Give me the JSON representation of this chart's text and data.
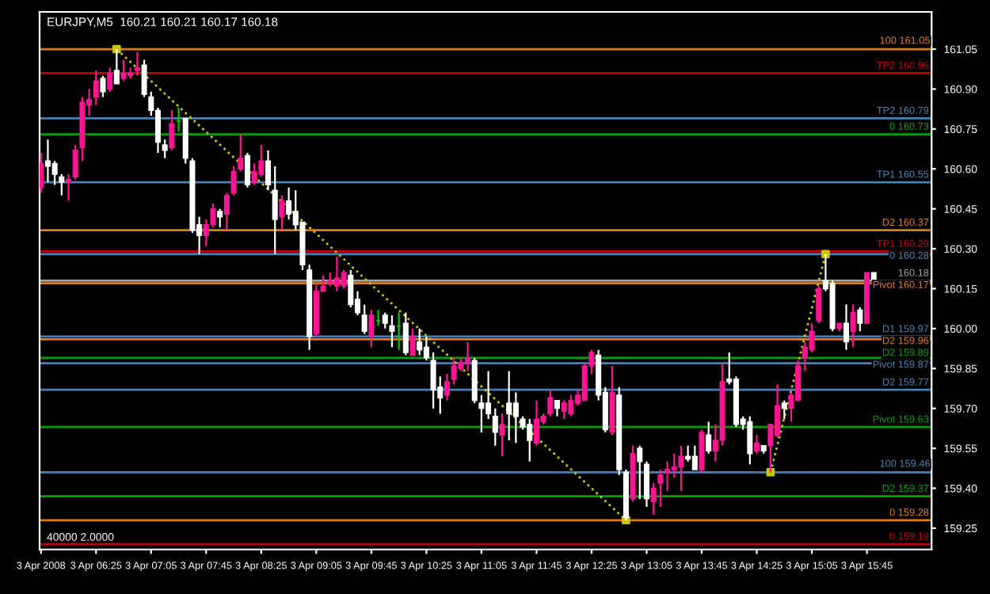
{
  "chart_data": {
    "type": "candlestick",
    "title": "EURJPY,M5  160.21 160.21 160.17 160.18",
    "x": [
      "2008-04-03T05:45",
      "2008-04-03T05:50",
      "2008-04-03T05:55",
      "2008-04-03T06:00",
      "2008-04-03T06:05",
      "2008-04-03T06:10",
      "2008-04-03T06:15",
      "2008-04-03T06:20",
      "2008-04-03T06:25",
      "2008-04-03T06:30",
      "2008-04-03T06:35",
      "2008-04-03T06:40",
      "2008-04-03T06:45",
      "2008-04-03T06:50",
      "2008-04-03T06:55",
      "2008-04-03T07:00",
      "2008-04-03T07:05",
      "2008-04-03T07:10",
      "2008-04-03T07:15",
      "2008-04-03T07:20",
      "2008-04-03T07:25",
      "2008-04-03T07:30",
      "2008-04-03T07:35",
      "2008-04-03T07:40",
      "2008-04-03T07:45",
      "2008-04-03T07:50",
      "2008-04-03T07:55",
      "2008-04-03T08:00",
      "2008-04-03T08:05",
      "2008-04-03T08:10",
      "2008-04-03T08:15",
      "2008-04-03T08:20",
      "2008-04-03T08:25",
      "2008-04-03T08:30",
      "2008-04-03T08:35",
      "2008-04-03T08:40",
      "2008-04-03T08:45",
      "2008-04-03T08:50",
      "2008-04-03T08:55",
      "2008-04-03T09:00",
      "2008-04-03T09:05",
      "2008-04-03T09:10",
      "2008-04-03T09:15",
      "2008-04-03T09:20",
      "2008-04-03T09:25",
      "2008-04-03T09:30",
      "2008-04-03T09:35",
      "2008-04-03T09:40",
      "2008-04-03T09:45",
      "2008-04-03T09:50",
      "2008-04-03T09:55",
      "2008-04-03T10:00",
      "2008-04-03T10:05",
      "2008-04-03T10:10",
      "2008-04-03T10:15",
      "2008-04-03T10:20",
      "2008-04-03T10:25",
      "2008-04-03T10:30",
      "2008-04-03T10:35",
      "2008-04-03T10:40",
      "2008-04-03T10:45",
      "2008-04-03T10:50",
      "2008-04-03T10:55",
      "2008-04-03T11:00",
      "2008-04-03T11:05",
      "2008-04-03T11:10",
      "2008-04-03T11:15",
      "2008-04-03T11:20",
      "2008-04-03T11:25",
      "2008-04-03T11:30",
      "2008-04-03T11:35",
      "2008-04-03T11:40",
      "2008-04-03T11:45",
      "2008-04-03T11:50",
      "2008-04-03T11:55",
      "2008-04-03T12:00",
      "2008-04-03T12:05",
      "2008-04-03T12:10",
      "2008-04-03T12:15",
      "2008-04-03T12:20",
      "2008-04-03T12:25",
      "2008-04-03T12:30",
      "2008-04-03T12:35",
      "2008-04-03T12:40",
      "2008-04-03T12:45",
      "2008-04-03T12:50",
      "2008-04-03T12:55",
      "2008-04-03T13:00",
      "2008-04-03T13:05",
      "2008-04-03T13:10",
      "2008-04-03T13:15",
      "2008-04-03T13:20",
      "2008-04-03T13:25",
      "2008-04-03T13:30",
      "2008-04-03T13:35",
      "2008-04-03T13:40",
      "2008-04-03T13:45",
      "2008-04-03T13:50",
      "2008-04-03T13:55",
      "2008-04-03T14:00",
      "2008-04-03T14:05",
      "2008-04-03T14:10",
      "2008-04-03T14:15",
      "2008-04-03T14:20",
      "2008-04-03T14:25",
      "2008-04-03T14:30",
      "2008-04-03T14:35",
      "2008-04-03T14:40",
      "2008-04-03T14:45",
      "2008-04-03T14:50",
      "2008-04-03T14:55",
      "2008-04-03T15:00",
      "2008-04-03T15:05",
      "2008-04-03T15:10",
      "2008-04-03T15:15",
      "2008-04-03T15:20",
      "2008-04-03T15:25",
      "2008-04-03T15:30",
      "2008-04-03T15:35",
      "2008-04-03T15:40",
      "2008-04-03T15:45",
      "2008-04-03T15:50"
    ],
    "ohlc": [
      [
        160.53,
        160.66,
        160.51,
        160.62
      ],
      [
        160.63,
        160.71,
        160.55,
        160.61
      ],
      [
        160.62,
        160.63,
        160.54,
        160.58
      ],
      [
        160.57,
        160.58,
        160.5,
        160.55
      ],
      [
        160.55,
        160.58,
        160.48,
        160.56
      ],
      [
        160.57,
        160.69,
        160.56,
        160.67
      ],
      [
        160.68,
        160.87,
        160.63,
        160.85
      ],
      [
        160.84,
        160.9,
        160.8,
        160.86
      ],
      [
        160.87,
        160.97,
        160.84,
        160.93
      ],
      [
        160.94,
        160.95,
        160.87,
        160.89
      ],
      [
        160.9,
        160.98,
        160.89,
        160.96
      ],
      [
        160.97,
        161.05,
        160.92,
        160.92
      ],
      [
        160.94,
        161.01,
        160.93,
        160.96
      ],
      [
        160.95,
        160.98,
        160.94,
        160.96
      ],
      [
        160.97,
        161.04,
        160.95,
        160.98
      ],
      [
        160.99,
        161.01,
        160.87,
        160.88
      ],
      [
        160.87,
        160.89,
        160.8,
        160.82
      ],
      [
        160.82,
        160.83,
        160.66,
        160.7
      ],
      [
        160.69,
        160.71,
        160.64,
        160.67
      ],
      [
        160.68,
        160.82,
        160.67,
        160.77
      ],
      [
        160.78,
        160.83,
        160.74,
        160.78
      ],
      [
        160.79,
        160.79,
        160.62,
        160.64
      ],
      [
        160.63,
        160.64,
        160.36,
        160.37
      ],
      [
        160.39,
        160.42,
        160.28,
        160.35
      ],
      [
        160.35,
        160.41,
        160.31,
        160.39
      ],
      [
        160.39,
        160.47,
        160.38,
        160.45
      ],
      [
        160.44,
        160.45,
        160.38,
        160.42
      ],
      [
        160.43,
        160.51,
        160.37,
        160.5
      ],
      [
        160.51,
        160.61,
        160.5,
        160.59
      ],
      [
        160.6,
        160.73,
        160.59,
        160.64
      ],
      [
        160.65,
        160.66,
        160.53,
        160.54
      ],
      [
        160.55,
        160.62,
        160.54,
        160.59
      ],
      [
        160.58,
        160.69,
        160.57,
        160.63
      ],
      [
        160.63,
        160.67,
        160.52,
        160.54
      ],
      [
        160.52,
        160.61,
        160.28,
        160.41
      ],
      [
        160.42,
        160.5,
        160.37,
        160.48
      ],
      [
        160.48,
        160.53,
        160.41,
        160.43
      ],
      [
        160.44,
        160.52,
        160.37,
        160.39
      ],
      [
        160.4,
        160.4,
        160.22,
        160.24
      ],
      [
        160.22,
        160.24,
        159.92,
        159.97
      ],
      [
        159.98,
        160.17,
        159.97,
        160.14
      ],
      [
        160.14,
        160.2,
        160.14,
        160.16
      ],
      [
        160.17,
        160.21,
        160.16,
        160.18
      ],
      [
        160.16,
        160.27,
        160.14,
        160.19
      ],
      [
        160.16,
        160.22,
        160.15,
        160.21
      ],
      [
        160.2,
        160.22,
        160.08,
        160.09
      ],
      [
        160.11,
        160.14,
        160.05,
        160.06
      ],
      [
        160.05,
        160.09,
        159.98,
        159.99
      ],
      [
        159.97,
        160.07,
        159.93,
        160.05
      ],
      [
        160.03,
        160.07,
        160.01,
        160.03
      ],
      [
        160.05,
        160.06,
        160.0,
        160.02
      ],
      [
        160.01,
        160.05,
        159.93,
        159.99
      ],
      [
        160.01,
        160.06,
        159.92,
        160.01
      ],
      [
        160.02,
        160.06,
        159.9,
        159.91
      ],
      [
        159.9,
        160.0,
        159.9,
        159.97
      ],
      [
        159.95,
        160.0,
        159.9,
        159.92
      ],
      [
        159.93,
        159.97,
        159.88,
        159.89
      ],
      [
        159.88,
        159.91,
        159.7,
        159.77
      ],
      [
        159.78,
        159.82,
        159.68,
        159.74
      ],
      [
        159.75,
        159.83,
        159.73,
        159.8
      ],
      [
        159.81,
        159.89,
        159.79,
        159.86
      ],
      [
        159.85,
        159.89,
        159.84,
        159.87
      ],
      [
        159.87,
        159.95,
        159.84,
        159.89
      ],
      [
        159.88,
        159.89,
        159.72,
        159.73
      ],
      [
        159.72,
        159.75,
        159.61,
        159.7
      ],
      [
        159.72,
        159.84,
        159.66,
        159.68
      ],
      [
        159.67,
        159.7,
        159.56,
        159.61
      ],
      [
        159.6,
        159.68,
        159.52,
        159.64
      ],
      [
        159.72,
        159.84,
        159.58,
        159.68
      ],
      [
        159.72,
        159.76,
        159.57,
        159.67
      ],
      [
        159.66,
        159.67,
        159.62,
        159.63
      ],
      [
        159.64,
        159.66,
        159.5,
        159.58
      ],
      [
        159.57,
        159.73,
        159.56,
        159.66
      ],
      [
        159.65,
        159.68,
        159.64,
        159.67
      ],
      [
        159.68,
        159.77,
        159.67,
        159.74
      ],
      [
        159.73,
        159.73,
        159.67,
        159.7
      ],
      [
        159.69,
        159.73,
        159.66,
        159.72
      ],
      [
        159.68,
        159.75,
        159.67,
        159.73
      ],
      [
        159.72,
        159.77,
        159.71,
        159.75
      ],
      [
        159.73,
        159.87,
        159.73,
        159.86
      ],
      [
        159.86,
        159.92,
        159.83,
        159.91
      ],
      [
        159.9,
        159.92,
        159.73,
        159.75
      ],
      [
        159.76,
        159.78,
        159.61,
        159.62
      ],
      [
        159.61,
        159.86,
        159.6,
        159.76
      ],
      [
        159.75,
        159.78,
        159.45,
        159.47
      ],
      [
        159.46,
        159.47,
        159.28,
        159.29
      ],
      [
        159.36,
        159.56,
        159.35,
        159.53
      ],
      [
        159.55,
        159.56,
        159.36,
        159.5
      ],
      [
        159.49,
        159.5,
        159.33,
        159.36
      ],
      [
        159.35,
        159.42,
        159.3,
        159.4
      ],
      [
        159.42,
        159.47,
        159.33,
        159.45
      ],
      [
        159.46,
        159.5,
        159.39,
        159.47
      ],
      [
        159.47,
        159.53,
        159.44,
        159.48
      ],
      [
        159.48,
        159.56,
        159.39,
        159.52
      ],
      [
        159.52,
        159.56,
        159.5,
        159.51
      ],
      [
        159.52,
        159.56,
        159.47,
        159.47
      ],
      [
        159.47,
        159.62,
        159.46,
        159.61
      ],
      [
        159.6,
        159.65,
        159.53,
        159.54
      ],
      [
        159.54,
        159.64,
        159.5,
        159.58
      ],
      [
        159.58,
        159.87,
        159.56,
        159.8
      ],
      [
        159.81,
        159.91,
        159.79,
        159.8
      ],
      [
        159.81,
        159.82,
        159.63,
        159.64
      ],
      [
        159.66,
        159.67,
        159.62,
        159.64
      ],
      [
        159.65,
        159.67,
        159.49,
        159.53
      ],
      [
        159.54,
        159.6,
        159.53,
        159.57
      ],
      [
        159.56,
        159.56,
        159.53,
        159.54
      ],
      [
        159.56,
        159.64,
        159.46,
        159.64
      ],
      [
        159.6,
        159.79,
        159.59,
        159.71
      ],
      [
        159.72,
        159.73,
        159.66,
        159.7
      ],
      [
        159.7,
        159.76,
        159.65,
        159.75
      ],
      [
        159.73,
        159.88,
        159.73,
        159.86
      ],
      [
        159.89,
        159.95,
        159.84,
        159.93
      ],
      [
        159.92,
        160.02,
        159.91,
        159.99
      ],
      [
        160.03,
        160.16,
        160.02,
        160.15
      ],
      [
        160.18,
        160.28,
        160.14,
        160.15
      ],
      [
        160.17,
        160.18,
        159.99,
        160.0
      ],
      [
        160.0,
        160.02,
        159.99,
        160.02
      ],
      [
        160.02,
        160.09,
        159.92,
        159.95
      ],
      [
        159.99,
        160.09,
        159.93,
        160.06
      ],
      [
        160.07,
        160.08,
        159.99,
        160.02
      ],
      [
        160.02,
        160.21,
        160.02,
        160.21
      ],
      [
        160.21,
        160.21,
        160.17,
        160.18
      ]
    ],
    "colors": [
      "#ff1493",
      "#ffffff",
      "#ffffff",
      "#ffffff",
      "#ff1493",
      "#ff1493",
      "#ff1493",
      "#ff1493",
      "#ff1493",
      "#ffffff",
      "#ff1493",
      "#ffffff",
      "#ff1493",
      "#ff1493",
      "#ff1493",
      "#ffffff",
      "#ffffff",
      "#ffffff",
      "#ffffff",
      "#ff1493",
      "#00c800",
      "#ffffff",
      "#ffffff",
      "#ffffff",
      "#ff1493",
      "#ff1493",
      "#ffffff",
      "#ff1493",
      "#ff1493",
      "#ff1493",
      "#ffffff",
      "#ff1493",
      "#ff1493",
      "#ffffff",
      "#ffffff",
      "#ff1493",
      "#ffffff",
      "#ffffff",
      "#ffffff",
      "#ffffff",
      "#ff1493",
      "#ff1493",
      "#ff1493",
      "#ff1493",
      "#ff1493",
      "#ffffff",
      "#ffffff",
      "#ffffff",
      "#ff1493",
      "#00c800",
      "#ffffff",
      "#ffffff",
      "#00c800",
      "#ffffff",
      "#ff1493",
      "#ffffff",
      "#ffffff",
      "#ffffff",
      "#ffffff",
      "#ff1493",
      "#ff1493",
      "#ff1493",
      "#ff1493",
      "#ffffff",
      "#ffffff",
      "#ffffff",
      "#ffffff",
      "#ff1493",
      "#ffffff",
      "#ffffff",
      "#ffffff",
      "#ffffff",
      "#ff1493",
      "#ff1493",
      "#ff1493",
      "#ffffff",
      "#ff1493",
      "#ff1493",
      "#ff1493",
      "#ff1493",
      "#ff1493",
      "#ffffff",
      "#ffffff",
      "#ff1493",
      "#ffffff",
      "#ffffff",
      "#ff1493",
      "#ffffff",
      "#ffffff",
      "#ff1493",
      "#ff1493",
      "#ff1493",
      "#ff1493",
      "#ff1493",
      "#ffffff",
      "#ffffff",
      "#ff1493",
      "#ffffff",
      "#ff1493",
      "#ff1493",
      "#ffffff",
      "#ffffff",
      "#ffffff",
      "#ffffff",
      "#ff1493",
      "#ffffff",
      "#ff1493",
      "#ff1493",
      "#ffffff",
      "#ff1493",
      "#ff1493",
      "#ff1493",
      "#ff1493",
      "#ff1493",
      "#ffffff",
      "#ffffff",
      "#ff1493",
      "#ffffff",
      "#ff1493",
      "#ffffff",
      "#ff1493",
      "#ffffff"
    ],
    "series": [
      {
        "type": "line",
        "color": "#c8c800",
        "line_style": "dotted",
        "marker": "square",
        "x": [
          "2008-04-03T06:40",
          "2008-04-03T12:50"
        ],
        "values": [
          161.05,
          159.28
        ]
      },
      {
        "type": "line",
        "color": "#c8c800",
        "line_style": "dotted",
        "marker": "square",
        "x": [
          "2008-04-03T14:35",
          "2008-04-03T15:15"
        ],
        "values": [
          159.46,
          160.28
        ]
      }
    ],
    "xlim": [
      "2008-04-03T05:44",
      "2008-04-03T16:32"
    ],
    "xticks": [
      {
        "value": "2008-04-03T05:45",
        "label": "3 Apr 2008"
      },
      {
        "value": "2008-04-03T06:25",
        "label": "3 Apr 06:25"
      },
      {
        "value": "2008-04-03T07:05",
        "label": "3 Apr 07:05"
      },
      {
        "value": "2008-04-03T07:45",
        "label": "3 Apr 07:45"
      },
      {
        "value": "2008-04-03T08:25",
        "label": "3 Apr 08:25"
      },
      {
        "value": "2008-04-03T09:05",
        "label": "3 Apr 09:05"
      },
      {
        "value": "2008-04-03T09:45",
        "label": "3 Apr 09:45"
      },
      {
        "value": "2008-04-03T10:25",
        "label": "3 Apr 10:25"
      },
      {
        "value": "2008-04-03T11:05",
        "label": "3 Apr 11:05"
      },
      {
        "value": "2008-04-03T11:45",
        "label": "3 Apr 11:45"
      },
      {
        "value": "2008-04-03T12:25",
        "label": "3 Apr 12:25"
      },
      {
        "value": "2008-04-03T13:05",
        "label": "3 Apr 13:05"
      },
      {
        "value": "2008-04-03T13:45",
        "label": "3 Apr 13:45"
      },
      {
        "value": "2008-04-03T14:25",
        "label": "3 Apr 14:25"
      },
      {
        "value": "2008-04-03T15:05",
        "label": "3 Apr 15:05"
      },
      {
        "value": "2008-04-03T15:45",
        "label": "3 Apr 15:45"
      }
    ],
    "ylim": [
      159.17,
      161.19
    ],
    "yticks": [
      159.25,
      {
        "value": 159.4,
        "label": "159.40"
      },
      159.55,
      {
        "value": 159.7,
        "label": "159.70"
      },
      159.85,
      {
        "value": 160.0,
        "label": "160.00"
      },
      160.15,
      {
        "value": 160.3,
        "label": "160.30"
      },
      160.45,
      {
        "value": 160.6,
        "label": "160.60"
      },
      160.75,
      {
        "value": 160.9,
        "label": "160.90"
      },
      161.05
    ],
    "ref_lines": [
      {
        "axis": "y",
        "value": 161.05,
        "color": "#e07b10"
      },
      {
        "axis": "y",
        "value": 160.96,
        "label": "TP2 160.96",
        "color": "#c00000"
      },
      {
        "axis": "y",
        "value": 160.79,
        "label": "TP2 160.79",
        "color": "#4682b4"
      },
      {
        "axis": "y",
        "value": 160.73,
        "label": "0 160.73",
        "color": "#00a000"
      },
      {
        "axis": "y",
        "value": 160.55,
        "label": "TP1 160.55",
        "color": "#4682b4"
      },
      {
        "axis": "y",
        "value": 160.37,
        "label": "D2 160.37",
        "color": "#e07b10"
      },
      {
        "axis": "y",
        "value": 160.29,
        "label": "TP1 160.29",
        "color": "#c00000"
      },
      {
        "axis": "y",
        "value": 160.28,
        "label": "0 160.28",
        "color": "#4682b4"
      },
      {
        "axis": "y",
        "value": 160.18,
        "label": "160.18",
        "color": "#a0a0a0"
      },
      {
        "axis": "y",
        "value": 160.17,
        "label": "Pivot 160.17",
        "color": "#e07b10"
      },
      {
        "axis": "y",
        "value": 159.97,
        "label": "D1 159.97",
        "color": "#4682b4"
      },
      {
        "axis": "y",
        "value": 159.96,
        "label": "D2 159.96",
        "color": "#e07b10"
      },
      {
        "axis": "y",
        "value": 159.89,
        "label": "D2 159.89",
        "color": "#00a000"
      },
      {
        "axis": "y",
        "value": 159.87,
        "label": "Pivot 159.87",
        "color": "#4682b4"
      },
      {
        "axis": "y",
        "value": 159.77,
        "label": "D2 159.77",
        "color": "#4682b4"
      },
      {
        "axis": "y",
        "value": 159.63,
        "label": "Pivot 159.63",
        "color": "#00a000"
      },
      {
        "axis": "y",
        "value": 159.46,
        "color": "#4682b4"
      },
      {
        "axis": "y",
        "value": 159.37,
        "label": "D2 159.37",
        "color": "#00a000"
      },
      {
        "axis": "y",
        "value": 159.28,
        "label": "0 159.28",
        "color": "#e07b10"
      },
      {
        "axis": "y",
        "value": 159.19,
        "label": "0 159.19",
        "color": "#c00000"
      }
    ],
    "annotations": [
      "40000 2.0000",
      {
        "text": "100 161.05",
        "x": "2008-04-03T16:31",
        "y": 161.05
      },
      {
        "text": "100 159.46",
        "x": "2008-04-03T16:31",
        "y": 159.46
      }
    ],
    "grid": false,
    "legend": false
  }
}
